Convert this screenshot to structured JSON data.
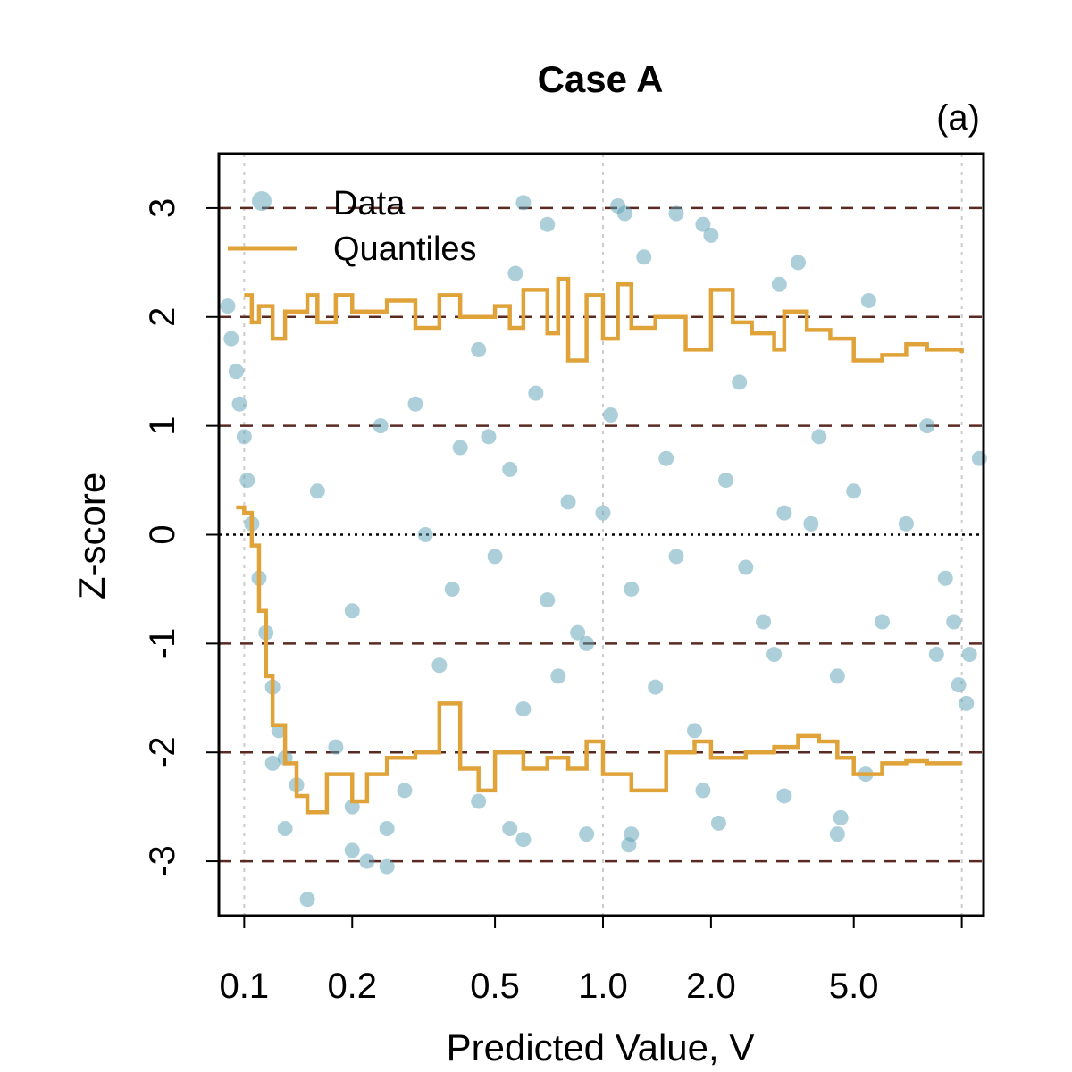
{
  "chart_data": {
    "type": "scatter",
    "title": "Case A",
    "panel_label": "(a)",
    "xlabel": "Predicted Value, V",
    "ylabel": "Z-score",
    "x_scale": "log",
    "xlim": [
      0.085,
      11.5
    ],
    "ylim": [
      -3.5,
      3.5
    ],
    "x_ticks": [
      0.1,
      0.2,
      0.5,
      1.0,
      2.0,
      5.0,
      10.0
    ],
    "x_tick_labels": [
      "0.1",
      "0.2",
      "0.5",
      "1.0",
      "2.0",
      "5.0",
      ""
    ],
    "x_vgrid": [
      0.1,
      1.0,
      10.0
    ],
    "y_ticks": [
      -3,
      -2,
      -1,
      0,
      1,
      2,
      3
    ],
    "y_tick_labels": [
      "-3",
      "-2",
      "-1",
      "0",
      "1",
      "2",
      "3"
    ],
    "reference_lines": {
      "dashed": [
        -3,
        -2,
        -1,
        1,
        2,
        3
      ],
      "dotted": [
        0
      ]
    },
    "legend": {
      "position": "top-left",
      "entries": [
        {
          "label": "Data",
          "kind": "point"
        },
        {
          "label": "Quantiles",
          "kind": "line"
        }
      ]
    },
    "colors": {
      "data": "#5aa0b4",
      "quantiles": "#e0a33a",
      "dashed": "#5a2a22",
      "vgrid": "#cccccc"
    },
    "series": [
      {
        "name": "Data",
        "kind": "scatter",
        "points": [
          [
            0.09,
            2.1
          ],
          [
            0.092,
            1.8
          ],
          [
            0.095,
            1.5
          ],
          [
            0.097,
            1.2
          ],
          [
            0.1,
            0.9
          ],
          [
            0.102,
            0.5
          ],
          [
            0.105,
            0.1
          ],
          [
            0.11,
            -0.4
          ],
          [
            0.115,
            -0.9
          ],
          [
            0.12,
            -1.4
          ],
          [
            0.125,
            -1.8
          ],
          [
            0.13,
            -2.05
          ],
          [
            0.14,
            -2.3
          ],
          [
            0.15,
            -3.35
          ],
          [
            0.2,
            -2.9
          ],
          [
            0.22,
            -3.0
          ],
          [
            0.25,
            -3.05
          ],
          [
            0.13,
            -2.7
          ],
          [
            0.2,
            -2.5
          ],
          [
            0.6,
            3.05
          ],
          [
            1.1,
            3.02
          ],
          [
            1.15,
            2.95
          ],
          [
            0.7,
            2.85
          ],
          [
            1.6,
            2.95
          ],
          [
            1.9,
            2.85
          ],
          [
            2.0,
            2.75
          ],
          [
            3.5,
            2.5
          ],
          [
            3.1,
            2.3
          ],
          [
            5.5,
            2.15
          ],
          [
            0.57,
            2.4
          ],
          [
            1.3,
            2.55
          ],
          [
            0.3,
            1.2
          ],
          [
            0.4,
            0.8
          ],
          [
            0.5,
            -0.2
          ],
          [
            0.8,
            0.3
          ],
          [
            1.2,
            -0.5
          ],
          [
            1.5,
            0.7
          ],
          [
            2.5,
            -0.3
          ],
          [
            0.35,
            -1.2
          ],
          [
            0.6,
            -1.6
          ],
          [
            0.9,
            -1.0
          ],
          [
            1.8,
            -1.8
          ],
          [
            2.4,
            1.4
          ],
          [
            3.0,
            -1.1
          ],
          [
            4.0,
            0.9
          ],
          [
            0.45,
            1.7
          ],
          [
            0.7,
            -0.6
          ],
          [
            1.0,
            0.2
          ],
          [
            1.4,
            -1.4
          ],
          [
            2.2,
            0.5
          ],
          [
            3.2,
            0.2
          ],
          [
            4.5,
            -1.3
          ],
          [
            5.0,
            0.4
          ],
          [
            6.0,
            -0.8
          ],
          [
            7.0,
            0.1
          ],
          [
            8.0,
            1.0
          ],
          [
            9.0,
            -0.4
          ],
          [
            8.5,
            -1.1
          ],
          [
            9.5,
            -0.8
          ],
          [
            10.5,
            -1.1
          ],
          [
            11.2,
            0.7
          ],
          [
            9.8,
            -1.38
          ],
          [
            10.3,
            -1.55
          ],
          [
            4.5,
            -2.75
          ],
          [
            4.6,
            -2.6
          ],
          [
            5.4,
            -2.2
          ],
          [
            3.2,
            -2.4
          ],
          [
            2.1,
            -2.65
          ],
          [
            1.9,
            -2.35
          ],
          [
            1.2,
            -2.75
          ],
          [
            1.18,
            -2.85
          ],
          [
            0.9,
            -2.75
          ],
          [
            0.55,
            -2.7
          ],
          [
            0.6,
            -2.8
          ],
          [
            0.45,
            -2.45
          ],
          [
            0.25,
            -2.7
          ],
          [
            0.28,
            -2.35
          ],
          [
            0.12,
            -2.1
          ],
          [
            0.18,
            -1.95
          ],
          [
            0.32,
            0.0
          ],
          [
            0.48,
            0.9
          ],
          [
            0.65,
            1.3
          ],
          [
            0.85,
            -0.9
          ],
          [
            1.05,
            1.1
          ],
          [
            1.6,
            -0.2
          ],
          [
            2.8,
            -0.8
          ],
          [
            3.8,
            0.1
          ],
          [
            0.16,
            0.4
          ],
          [
            0.2,
            -0.7
          ],
          [
            0.24,
            1.0
          ],
          [
            0.38,
            -0.5
          ],
          [
            0.55,
            0.6
          ],
          [
            0.75,
            -1.3
          ]
        ]
      },
      {
        "name": "Quantiles",
        "kind": "line",
        "upper": [
          [
            0.1,
            2.2
          ],
          [
            0.105,
            1.95
          ],
          [
            0.11,
            2.1
          ],
          [
            0.12,
            1.8
          ],
          [
            0.13,
            2.05
          ],
          [
            0.15,
            2.2
          ],
          [
            0.16,
            1.95
          ],
          [
            0.18,
            2.2
          ],
          [
            0.2,
            2.05
          ],
          [
            0.25,
            2.15
          ],
          [
            0.3,
            1.9
          ],
          [
            0.35,
            2.2
          ],
          [
            0.4,
            2.0
          ],
          [
            0.5,
            2.1
          ],
          [
            0.55,
            1.9
          ],
          [
            0.6,
            2.25
          ],
          [
            0.7,
            1.85
          ],
          [
            0.75,
            2.35
          ],
          [
            0.8,
            1.6
          ],
          [
            0.9,
            2.2
          ],
          [
            1.0,
            1.8
          ],
          [
            1.1,
            2.3
          ],
          [
            1.2,
            1.9
          ],
          [
            1.4,
            2.0
          ],
          [
            1.7,
            1.7
          ],
          [
            2.0,
            2.25
          ],
          [
            2.3,
            1.95
          ],
          [
            2.6,
            1.85
          ],
          [
            3.0,
            1.7
          ],
          [
            3.2,
            2.05
          ],
          [
            3.7,
            1.88
          ],
          [
            4.3,
            1.8
          ],
          [
            5.0,
            1.6
          ],
          [
            6.0,
            1.65
          ],
          [
            7.0,
            1.75
          ],
          [
            8.0,
            1.7
          ],
          [
            9.0,
            1.7
          ],
          [
            10.0,
            1.67
          ]
        ],
        "lower": [
          [
            0.095,
            0.25
          ],
          [
            0.1,
            0.2
          ],
          [
            0.105,
            -0.1
          ],
          [
            0.11,
            -0.7
          ],
          [
            0.115,
            -1.3
          ],
          [
            0.12,
            -1.75
          ],
          [
            0.13,
            -2.1
          ],
          [
            0.14,
            -2.4
          ],
          [
            0.15,
            -2.55
          ],
          [
            0.17,
            -2.2
          ],
          [
            0.2,
            -2.45
          ],
          [
            0.22,
            -2.2
          ],
          [
            0.25,
            -2.05
          ],
          [
            0.3,
            -2.0
          ],
          [
            0.35,
            -1.55
          ],
          [
            0.4,
            -2.15
          ],
          [
            0.45,
            -2.35
          ],
          [
            0.5,
            -2.0
          ],
          [
            0.6,
            -2.15
          ],
          [
            0.7,
            -2.05
          ],
          [
            0.8,
            -2.15
          ],
          [
            0.9,
            -1.9
          ],
          [
            1.0,
            -2.2
          ],
          [
            1.2,
            -2.35
          ],
          [
            1.5,
            -2.0
          ],
          [
            1.8,
            -1.9
          ],
          [
            2.0,
            -2.05
          ],
          [
            2.5,
            -2.0
          ],
          [
            3.0,
            -1.95
          ],
          [
            3.5,
            -1.85
          ],
          [
            4.0,
            -1.9
          ],
          [
            4.5,
            -2.05
          ],
          [
            5.0,
            -2.2
          ],
          [
            6.0,
            -2.1
          ],
          [
            7.0,
            -2.08
          ],
          [
            8.0,
            -2.1
          ],
          [
            9.0,
            -2.1
          ],
          [
            10.0,
            -2.1
          ]
        ]
      }
    ]
  }
}
